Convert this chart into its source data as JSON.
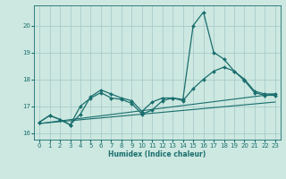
{
  "title": "",
  "xlabel": "Humidex (Indice chaleur)",
  "bg_color": "#cce8e0",
  "grid_color": "#aacccc",
  "line_color": "#1a6e6e",
  "xlim": [
    -0.5,
    23.5
  ],
  "ylim": [
    15.75,
    20.75
  ],
  "yticks": [
    16,
    17,
    18,
    19,
    20
  ],
  "xticks": [
    0,
    1,
    2,
    3,
    4,
    5,
    6,
    7,
    8,
    9,
    10,
    11,
    12,
    13,
    14,
    15,
    16,
    17,
    18,
    19,
    20,
    21,
    22,
    23
  ],
  "lines": [
    {
      "x": [
        0,
        1,
        2,
        3,
        4,
        5,
        6,
        7,
        8,
        9,
        10,
        11,
        12,
        13,
        14,
        15,
        16,
        17,
        18,
        19,
        20,
        21,
        22,
        23
      ],
      "y": [
        16.4,
        16.65,
        16.5,
        16.3,
        16.7,
        17.35,
        17.6,
        17.45,
        17.3,
        17.2,
        16.8,
        17.15,
        17.3,
        17.3,
        17.25,
        20.0,
        20.5,
        19.0,
        18.75,
        18.3,
        18.0,
        17.55,
        17.45,
        17.45
      ],
      "marker": "D",
      "markersize": 2.0,
      "linewidth": 0.9
    },
    {
      "x": [
        0,
        1,
        2,
        3,
        4,
        5,
        6,
        7,
        8,
        9,
        10,
        11,
        12,
        13,
        14,
        15,
        16,
        17,
        18,
        19,
        20,
        21,
        22,
        23
      ],
      "y": [
        16.4,
        16.65,
        16.5,
        16.3,
        17.0,
        17.3,
        17.5,
        17.3,
        17.25,
        17.1,
        16.7,
        16.85,
        17.2,
        17.3,
        17.2,
        17.65,
        18.0,
        18.3,
        18.45,
        18.3,
        17.95,
        17.5,
        17.4,
        17.4
      ],
      "marker": "D",
      "markersize": 2.0,
      "linewidth": 0.9
    },
    {
      "x": [
        0,
        23
      ],
      "y": [
        16.35,
        17.45
      ],
      "marker": null,
      "linewidth": 0.8
    },
    {
      "x": [
        0,
        23
      ],
      "y": [
        16.35,
        17.15
      ],
      "marker": null,
      "linewidth": 0.8
    }
  ]
}
